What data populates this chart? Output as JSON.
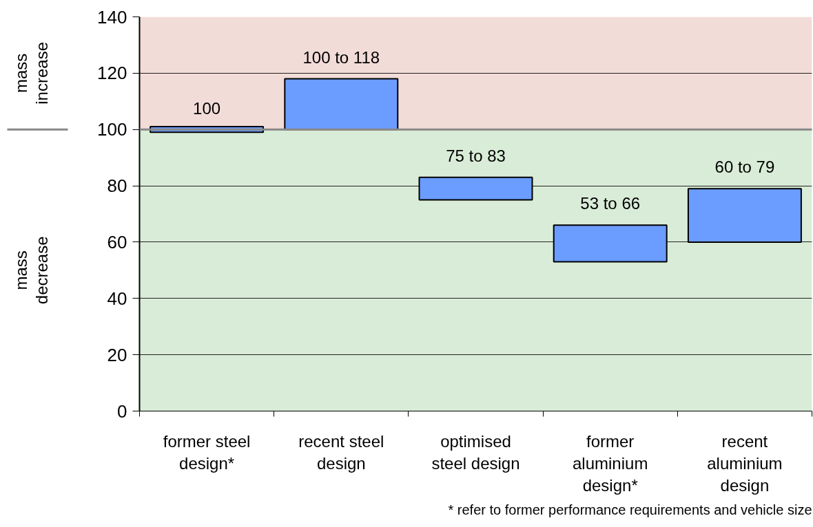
{
  "chart_data": {
    "type": "bar",
    "categories": [
      "former steel design*",
      "recent steel design",
      "optimised steel design",
      "former aluminium design*",
      "recent aluminium design"
    ],
    "base": [
      99,
      100,
      75,
      53,
      60
    ],
    "values": [
      2,
      18,
      8,
      13,
      19
    ],
    "color": "#6b9cff",
    "ylim": [
      0,
      140
    ],
    "yticks": [
      0,
      20,
      40,
      60,
      80,
      100,
      120,
      140
    ],
    "grid": "y",
    "ref_lines": [
      {
        "axis": "y",
        "value": 100,
        "color": "#888888"
      }
    ],
    "bands": [
      {
        "axis": "y",
        "from": 100,
        "to": 140,
        "color": "#f2dcd7"
      },
      {
        "axis": "y",
        "from": 0,
        "to": 100,
        "color": "#d9ecd7"
      }
    ],
    "annotations": [
      "mass increase",
      "mass decrease",
      {
        "text": "100",
        "x": "former steel design*",
        "y": 101
      },
      {
        "text": "100 to 118",
        "x": "recent steel design",
        "y": 118
      },
      {
        "text": "75 to 83",
        "x": "optimised steel design",
        "y": 83
      },
      {
        "text": "53 to 66",
        "x": "former aluminium design*",
        "y": 66
      },
      {
        "text": "60 to 79",
        "x": "recent aluminium design",
        "y": 79
      },
      "* refer to former performance requirements and vehicle size"
    ]
  }
}
